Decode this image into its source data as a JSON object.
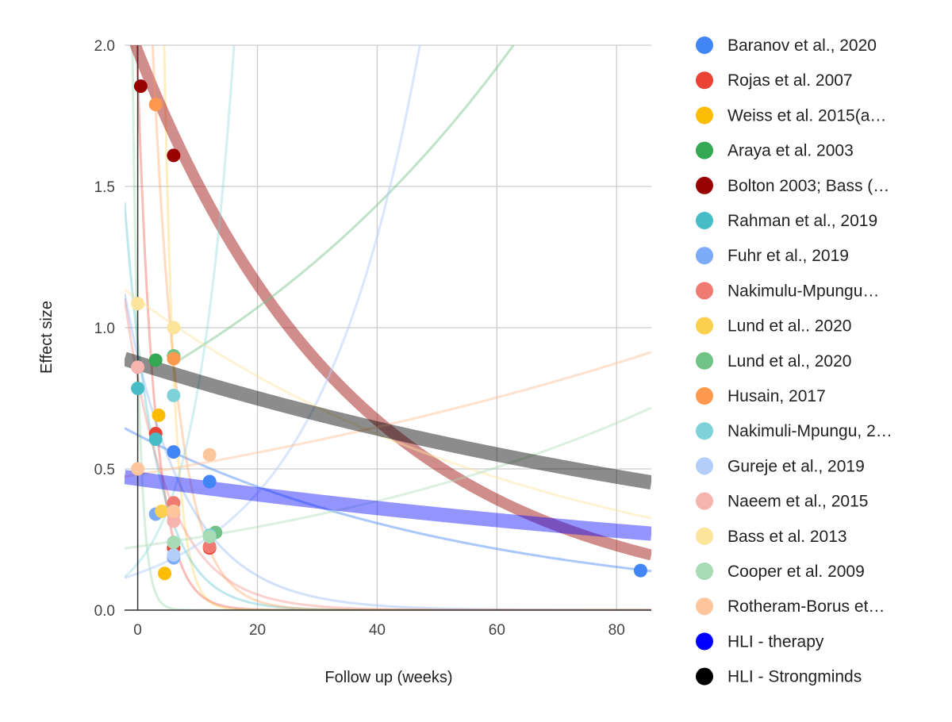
{
  "chart_data": {
    "type": "scatter",
    "title": "",
    "xlabel": "Follow up (weeks)",
    "ylabel": "Effect size",
    "xlim": [
      -2.2,
      85.8
    ],
    "ylim": [
      0,
      2
    ],
    "xticks": [
      0,
      20,
      40,
      60,
      80
    ],
    "yticks": [
      0,
      0.5,
      1,
      1.5,
      2
    ],
    "ytick_labels": [
      "0.0",
      "0.5",
      "1.0",
      "1.5",
      "2.0"
    ],
    "grid": true,
    "legend_position": "right",
    "series": [
      {
        "name": "Baranov et al., 2020",
        "legend_label": "Baranov et al., 2020",
        "color": "#4285F4",
        "points": [
          [
            6,
            0.56
          ],
          [
            12,
            0.455
          ],
          [
            84,
            0.14
          ]
        ],
        "trend": {
          "type": "exp",
          "a": 0.62,
          "b": -0.0175,
          "opacity": 0.45,
          "width": 3
        }
      },
      {
        "name": "Rojas et al. 2007",
        "legend_label": "Rojas et al. 2007",
        "color": "#EA4335",
        "points": [
          [
            3,
            0.625
          ],
          [
            6,
            0.22
          ],
          [
            12,
            0.22
          ]
        ],
        "trend": {
          "type": "exp",
          "a": 1.9,
          "b": -0.34,
          "opacity": 0.35,
          "width": 3
        }
      },
      {
        "name": "Weiss et al. 2015(a…",
        "legend_label": "Weiss et al. 2015(a…",
        "color": "#FBBC04",
        "points": [
          [
            3.5,
            0.69
          ],
          [
            4.5,
            0.13
          ]
        ],
        "trend": {
          "type": "exp",
          "a": 22.7,
          "b": -0.55,
          "opacity": 0.25,
          "width": 3
        }
      },
      {
        "name": "Araya et al. 2003",
        "legend_label": "Araya et al. 2003",
        "color": "#34A853",
        "points": [
          [
            3,
            0.885
          ],
          [
            6,
            0.9
          ]
        ],
        "trend": {
          "type": "exp",
          "a": 0.9,
          "b": -0.9,
          "opacity": 0.2,
          "width": 3
        }
      },
      {
        "name": "Bolton 2003; Bass (…",
        "legend_label": "Bolton 2003; Bass (…",
        "color": "#990000",
        "points": [
          [
            0.5,
            1.855
          ],
          [
            6,
            1.61
          ]
        ],
        "trend": {
          "type": "exp",
          "a": 1.98,
          "b": -0.027,
          "opacity": 0.45,
          "width": 14
        }
      },
      {
        "name": "Rahman et al., 2019",
        "legend_label": "Rahman et al., 2019",
        "color": "#46BDC6",
        "points": [
          [
            0,
            0.785
          ],
          [
            3,
            0.605
          ]
        ],
        "trend": {
          "type": "exp",
          "a": 0.95,
          "b": -0.19,
          "opacity": 0.35,
          "width": 3
        }
      },
      {
        "name": "Fuhr et al., 2019",
        "legend_label": "Fuhr et al., 2019",
        "color": "#7BAAF7",
        "points": [
          [
            3,
            0.34
          ],
          [
            6,
            0.185
          ]
        ],
        "trend": {
          "type": "exp",
          "a": 0.9,
          "b": -0.1,
          "opacity": 0.35,
          "width": 3
        }
      },
      {
        "name": "Nakimulu-Mpungu…",
        "legend_label": "Nakimulu-Mpungu…",
        "color": "#F07B72",
        "points": [
          [
            6,
            0.38
          ],
          [
            12,
            0.225
          ]
        ],
        "trend": {
          "type": "exp",
          "a": 0.82,
          "b": -0.135,
          "opacity": 0.35,
          "width": 3
        }
      },
      {
        "name": "Lund et al.. 2020",
        "legend_label": "Lund et al.. 2020",
        "color": "#FCD04F",
        "points": [],
        "trend": null
      },
      {
        "name": "Lund et al., 2020",
        "legend_label": "Lund et al., 2020",
        "color": "#71C287",
        "points": [
          [
            13,
            0.275
          ],
          [
            6,
            0.9
          ]
        ],
        "trend": {
          "type": "exp",
          "a": 0.8,
          "b": 0.0146,
          "x0": 6,
          "opacity": 0.45,
          "width": 3
        }
      },
      {
        "name": "Husain, 2017",
        "legend_label": "Husain, 2017",
        "color": "#FF994D",
        "points": [
          [
            3,
            1.79
          ],
          [
            6,
            0.89
          ]
        ],
        "trend": {
          "type": "exp",
          "a": 3.6,
          "b": -0.235,
          "opacity": 0.35,
          "width": 3
        }
      },
      {
        "name": "Nakimuli-Mpungu, 2…",
        "legend_label": "Nakimuli-Mpungu, 2…",
        "color": "#7ED1D7",
        "points": [
          [
            6,
            0.76
          ],
          [
            12,
            0.265
          ]
        ],
        "trend": {
          "type": "exp",
          "a": 0.165,
          "b": 0.155,
          "opacity": 0.35,
          "width": 3
        }
      },
      {
        "name": "Gureje et al., 2019",
        "legend_label": "Gureje et al., 2019",
        "color": "#B3CEFB",
        "points": [
          [
            6,
            0.195
          ]
        ],
        "trend": {
          "type": "exp",
          "a": 0.13,
          "b": 0.058,
          "opacity": 0.5,
          "width": 3
        }
      },
      {
        "name": "Naeem et al., 2015",
        "legend_label": "Naeem et al., 2015",
        "color": "#F7B4AE",
        "points": [
          [
            0,
            0.86
          ],
          [
            6,
            0.315
          ],
          [
            6,
            0.34
          ]
        ],
        "trend": null
      },
      {
        "name": "Bass et al. 2013",
        "legend_label": "Bass et al. 2013",
        "color": "#FDE49B",
        "points": [
          [
            0,
            1.085
          ],
          [
            6,
            1.0
          ]
        ],
        "trend": {
          "type": "exp",
          "a": 1.1,
          "b": -0.0142,
          "opacity": 0.45,
          "width": 3
        }
      },
      {
        "name": "Cooper et al. 2009",
        "legend_label": "Cooper et al. 2009",
        "color": "#A8DAB5",
        "points": [
          [
            6,
            0.24
          ],
          [
            12,
            0.26
          ]
        ],
        "trend": {
          "type": "exp",
          "a": 0.225,
          "b": 0.0135,
          "opacity": 0.4,
          "width": 3
        }
      },
      {
        "name": "Rotheram-Borus et…",
        "legend_label": "Rotheram-Borus et…",
        "color": "#FDC69C",
        "points": [
          [
            0,
            0.5
          ],
          [
            12,
            0.55
          ]
        ],
        "trend": {
          "type": "exp",
          "a": 0.48,
          "b": 0.0075,
          "opacity": 0.5,
          "width": 3
        }
      },
      {
        "name": "HLI - therapy",
        "legend_label": "HLI - therapy",
        "color": "#0000FF",
        "points": [],
        "trend": {
          "type": "exp",
          "a": 0.465,
          "b": -0.0063,
          "opacity": 0.42,
          "width": 18
        }
      },
      {
        "name": "HLI - Strongminds",
        "legend_label": "HLI - Strongminds",
        "color": "#000000",
        "points": [],
        "trend": {
          "type": "exp",
          "a": 0.875,
          "b": -0.0077,
          "opacity": 0.45,
          "width": 18
        }
      }
    ],
    "extra_points": [
      {
        "x": 4,
        "y": 0.35,
        "color": "#FCD04F"
      },
      {
        "x": 6,
        "y": 0.35,
        "color": "#FDC69C"
      }
    ]
  }
}
